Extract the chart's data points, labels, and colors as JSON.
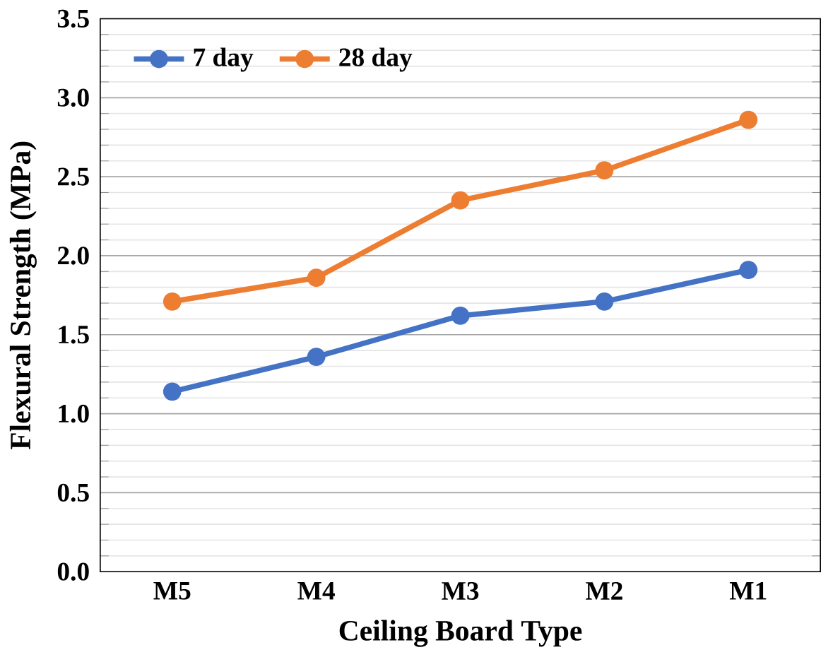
{
  "chart_data": {
    "type": "line",
    "xlabel": "Ceiling Board Type",
    "ylabel": "Flexural Strength (MPa)",
    "categories": [
      "M5",
      "M4",
      "M3",
      "M2",
      "M1"
    ],
    "series": [
      {
        "name": "7 day",
        "color": "#4472c4",
        "values": [
          1.14,
          1.36,
          1.62,
          1.71,
          1.91
        ]
      },
      {
        "name": "28 day",
        "color": "#ed7d31",
        "values": [
          1.71,
          1.86,
          2.35,
          2.54,
          2.86
        ]
      }
    ],
    "ylim": [
      0,
      3.5
    ],
    "yticks": [
      {
        "value": 0,
        "label": "0.0"
      },
      {
        "value": 0.5,
        "label": "0.5"
      },
      {
        "value": 1,
        "label": "1.0"
      },
      {
        "value": 1.5,
        "label": "1.5"
      },
      {
        "value": 2,
        "label": "2.0"
      },
      {
        "value": 2.5,
        "label": "2.5"
      },
      {
        "value": 3,
        "label": "3.0"
      },
      {
        "value": 3.5,
        "label": "3.5"
      }
    ],
    "grid": "y",
    "legend": "top left",
    "marker": "circle",
    "line_style": "solid"
  }
}
